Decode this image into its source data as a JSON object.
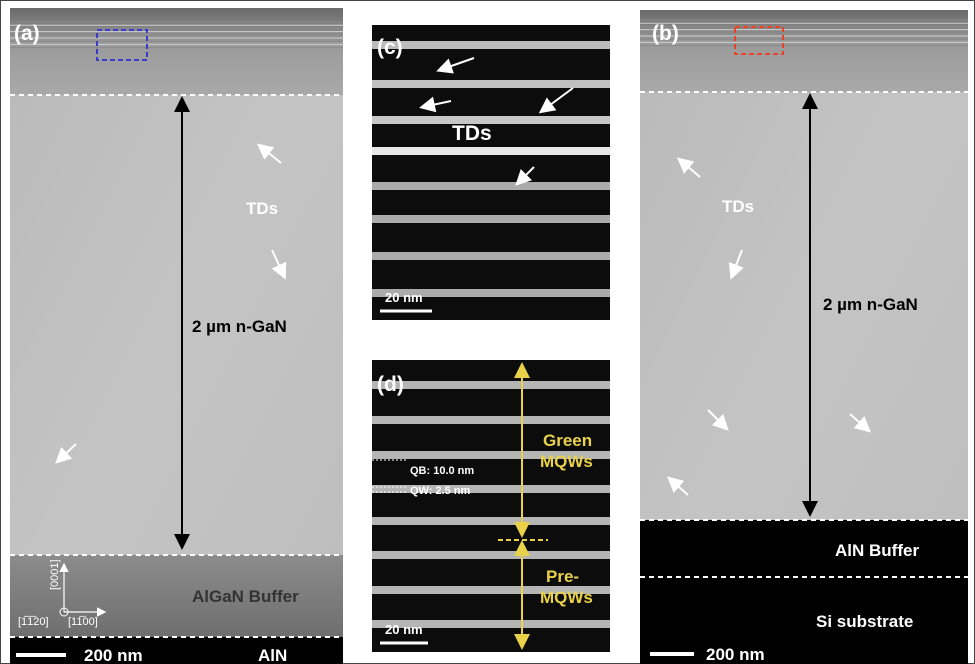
{
  "panels": {
    "a": {
      "label": "(a)",
      "tds": "TDs",
      "thickness": "2 µm n-GaN",
      "buffer": "AlGaN Buffer",
      "axis_up": "[0001]",
      "axis_left": "[1̅1̅20]",
      "axis_right": "[11̅00]",
      "scale": "200 nm",
      "bottom": "AlN"
    },
    "b": {
      "label": "(b)",
      "tds": "TDs",
      "thickness": "2 µm n-GaN",
      "buffer": "AlN Buffer",
      "substrate": "Si substrate",
      "scale": "200 nm"
    },
    "c": {
      "label": "(c)",
      "tds": "TDs",
      "scale": "20 nm"
    },
    "d": {
      "label": "(d)",
      "green": [
        "Green",
        "MQWs"
      ],
      "qb": "QB: 10.0 nm",
      "qw": "QW: 2.5 nm",
      "pre": [
        "Pre-",
        "MQWs"
      ],
      "scale": "20 nm"
    }
  }
}
